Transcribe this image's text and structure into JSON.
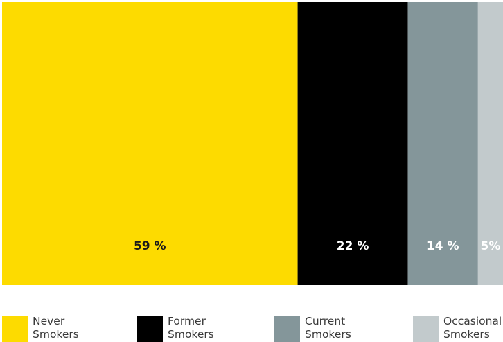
{
  "chart_data": {
    "type": "bar",
    "subtype": "100%-stacked-horizontal",
    "categories": [
      "Never Smokers",
      "Former Smokers",
      "Current Smokers",
      "Occasional Smokers"
    ],
    "values": [
      59,
      22,
      14,
      5
    ],
    "value_labels": [
      "59 %",
      "22 %",
      "14 %",
      "5%"
    ],
    "unit": "%",
    "legend_placement": "bottom",
    "grid": false,
    "colors": [
      "#FDDB00",
      "#000000",
      "#84969A",
      "#C2CACC"
    ],
    "label_colors": [
      "#1a1a1a",
      "#ffffff",
      "#ffffff",
      "#ffffff"
    ],
    "legend": [
      {
        "line1": "Never",
        "line2": "Smokers"
      },
      {
        "line1": "Former",
        "line2": "Smokers"
      },
      {
        "line1": "Current",
        "line2": "Smokers"
      },
      {
        "line1": "Occasional",
        "line2": "Smokers"
      }
    ]
  }
}
